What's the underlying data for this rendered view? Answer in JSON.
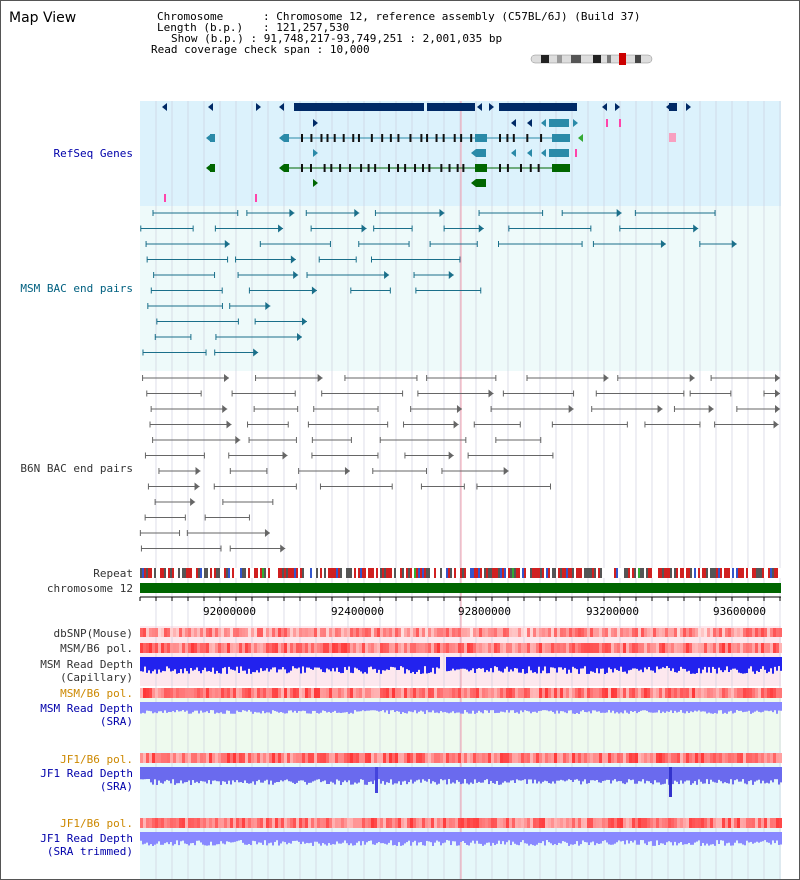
{
  "title": "Map View",
  "info": {
    "chromosome_key": "Chromosome",
    "chromosome_val": "Chromosome 12, reference assembly (C57BL/6J) (Build 37)",
    "length_key": "Length (b.p.)",
    "length_val": "121,257,530",
    "show_key": "Show (b.p.)",
    "show_val": "91,748,217-93,749,251 : 2,001,035 bp",
    "span_key": "Read coverage check span",
    "span_val": "10,000"
  },
  "tracks": {
    "refseq": "RefSeq Genes",
    "msm_bac": "MSM BAC end pairs",
    "b6n_bac": "B6N BAC end pairs",
    "repeat": "Repeat",
    "chromosome": "chromosome 12",
    "dbsnp": "dbSNP(Mouse)",
    "msm_b6_pol": "MSM/B6 pol.",
    "msm_depth_cap_1": "MSM Read Depth",
    "msm_depth_cap_2": "(Capillary)",
    "msm_b6_pol_sra": "MSM/B6 pol.",
    "msm_depth_sra_1": "MSM Read Depth",
    "msm_depth_sra_2": "(SRA)",
    "jf1_b6_pol": "JF1/B6 pol.",
    "jf1_depth_1": "JF1 Read Depth",
    "jf1_depth_2": "(SRA)",
    "jf1_b6_pol_trim": "JF1/B6 pol.",
    "jf1_depth_trim_1": "JF1 Read Depth",
    "jf1_depth_trim_2": "(SRA trimmed)"
  },
  "axis": {
    "ticks": [
      "92000000",
      "92400000",
      "92800000",
      "93200000",
      "93600000"
    ]
  },
  "colors": {
    "refseq_bg": "#dcf2fc",
    "pair_bg": "#eefafa",
    "navy": "#002a66",
    "teal": "#2a8aa8",
    "green": "#006600",
    "gray_pair": "#666666",
    "depth_blue": "#2222ee",
    "depth_light": "#8888ff",
    "pol_red": "#ff4444"
  }
}
